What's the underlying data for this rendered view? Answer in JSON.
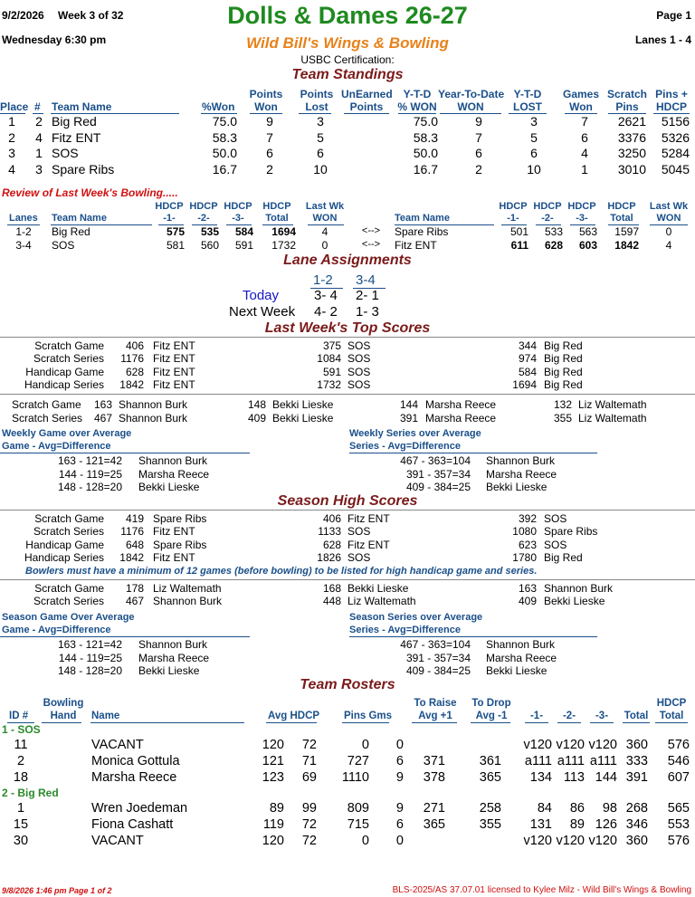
{
  "header": {
    "date": "9/2/2026",
    "week": "Week 3 of 32",
    "league": "Dolls & Dames 26-27",
    "page": "Page 1",
    "day_time": "Wednesday   6:30 pm",
    "center": "Wild Bill's Wings & Bowling",
    "lanes": "Lanes 1 - 4",
    "cert": "USBC Certification:"
  },
  "team_standings": {
    "title": "Team Standings",
    "headers": {
      "place": "Place",
      "num": "#",
      "team": "Team Name",
      "pct_won": "%Won",
      "pts_won_1": "Points",
      "pts_won_2": "Won",
      "pts_lost_1": "Points",
      "pts_lost_2": "Lost",
      "unearned_1": "UnEarned",
      "unearned_2": "Points",
      "ytd_pct_1": "Y-T-D",
      "ytd_pct_2": "% WON",
      "ytd_won_1": "Year-To-Date",
      "ytd_won_2": "WON",
      "ytd_lost_1": "Y-T-D",
      "ytd_lost_2": "LOST",
      "games_1": "Games",
      "games_2": "Won",
      "scratch_1": "Scratch",
      "scratch_2": "Pins",
      "pinshdcp_1": "Pins +",
      "pinshdcp_2": "HDCP"
    },
    "rows": [
      {
        "place": "1",
        "num": "2",
        "team": "Big Red",
        "pct": "75.0",
        "won": "9",
        "lost": "3",
        "ytd_pct": "75.0",
        "ytd_won": "9",
        "ytd_lost": "3",
        "games": "7",
        "scratch": "2621",
        "hdcp": "5156"
      },
      {
        "place": "2",
        "num": "4",
        "team": "Fitz ENT",
        "pct": "58.3",
        "won": "7",
        "lost": "5",
        "ytd_pct": "58.3",
        "ytd_won": "7",
        "ytd_lost": "5",
        "games": "6",
        "scratch": "3376",
        "hdcp": "5326"
      },
      {
        "place": "3",
        "num": "1",
        "team": "SOS",
        "pct": "50.0",
        "won": "6",
        "lost": "6",
        "ytd_pct": "50.0",
        "ytd_won": "6",
        "ytd_lost": "6",
        "games": "4",
        "scratch": "3250",
        "hdcp": "5284"
      },
      {
        "place": "4",
        "num": "3",
        "team": "Spare Ribs",
        "pct": "16.7",
        "won": "2",
        "lost": "10",
        "ytd_pct": "16.7",
        "ytd_won": "2",
        "ytd_lost": "10",
        "games": "1",
        "scratch": "3010",
        "hdcp": "5045"
      }
    ]
  },
  "review": {
    "title": "Review of Last Week's Bowling.....",
    "headers": {
      "lanes": "Lanes",
      "team": "Team Name",
      "h1a": "HDCP",
      "h1b": "-1-",
      "h2a": "HDCP",
      "h2b": "-2-",
      "h3a": "HDCP",
      "h3b": "-3-",
      "hta": "HDCP",
      "htb": "Total",
      "lwa": "Last Wk",
      "lwb": "WON"
    },
    "arrow": "<-->",
    "rows": [
      {
        "lanes": "1-2",
        "team": "Big Red",
        "g1": "575",
        "g2": "535",
        "g3": "584",
        "tot": "1694",
        "won": "4",
        "opp": "Spare Ribs",
        "og1": "501",
        "og2": "533",
        "og3": "563",
        "otot": "1597",
        "owon": "0"
      },
      {
        "lanes": "3-4",
        "team": "SOS",
        "g1": "581",
        "g2": "560",
        "g3": "591",
        "tot": "1732",
        "won": "0",
        "opp": "Fitz ENT",
        "og1": "611",
        "og2": "628",
        "og3": "603",
        "otot": "1842",
        "owon": "4"
      }
    ]
  },
  "lane_assign": {
    "title": "Lane Assignments",
    "pair1": "1-2",
    "pair2": "3-4",
    "today_label": "Today",
    "today_1": "3-  4",
    "today_2": "2-  1",
    "next_label": "Next Week",
    "next_1": "4-  2",
    "next_2": "1-  3"
  },
  "top_scores": {
    "title": "Last Week's Top Scores",
    "team_rows": [
      {
        "label": "Scratch Game",
        "v1": "406",
        "t1": "Fitz ENT",
        "v2": "375",
        "t2": "SOS",
        "v3": "344",
        "t3": "Big Red"
      },
      {
        "label": "Scratch Series",
        "v1": "1176",
        "t1": "Fitz ENT",
        "v2": "1084",
        "t2": "SOS",
        "v3": "974",
        "t3": "Big Red"
      },
      {
        "label": "Handicap Game",
        "v1": "628",
        "t1": "Fitz ENT",
        "v2": "591",
        "t2": "SOS",
        "v3": "584",
        "t3": "Big Red"
      },
      {
        "label": "Handicap Series",
        "v1": "1842",
        "t1": "Fitz ENT",
        "v2": "1732",
        "t2": "SOS",
        "v3": "1694",
        "t3": "Big Red"
      }
    ],
    "ind_rows": [
      {
        "label": "Scratch Game",
        "v1": "163",
        "n1": "Shannon Burk",
        "v2": "148",
        "n2": "Bekki Lieske",
        "v3": "144",
        "n3": "Marsha Reece",
        "v4": "132",
        "n4": "Liz Waltemath"
      },
      {
        "label": "Scratch Series",
        "v1": "467",
        "n1": "Shannon Burk",
        "v2": "409",
        "n2": "Bekki Lieske",
        "v3": "391",
        "n3": "Marsha Reece",
        "v4": "355",
        "n4": "Liz Waltemath"
      }
    ],
    "over_game_title1": "Weekly Game over Average",
    "over_game_title2": "Game - Avg=Difference",
    "over_series_title1": "Weekly Series over Average",
    "over_series_title2": "Series - Avg=Difference",
    "over_game": [
      {
        "calc": "163 - 121=42",
        "name": "Shannon Burk"
      },
      {
        "calc": "144 - 119=25",
        "name": "Marsha Reece"
      },
      {
        "calc": "148 - 128=20",
        "name": "Bekki Lieske"
      }
    ],
    "over_series": [
      {
        "calc": "467 - 363=104",
        "name": "Shannon Burk"
      },
      {
        "calc": "391 - 357=34",
        "name": "Marsha Reece"
      },
      {
        "calc": "409 - 384=25",
        "name": "Bekki Lieske"
      }
    ]
  },
  "season_high": {
    "title": "Season High Scores",
    "team_rows": [
      {
        "label": "Scratch Game",
        "v1": "419",
        "t1": "Spare Ribs",
        "v2": "406",
        "t2": "Fitz ENT",
        "v3": "392",
        "t3": "SOS"
      },
      {
        "label": "Scratch Series",
        "v1": "1176",
        "t1": "Fitz ENT",
        "v2": "1133",
        "t2": "SOS",
        "v3": "1080",
        "t3": "Spare Ribs"
      },
      {
        "label": "Handicap Game",
        "v1": "648",
        "t1": "Spare Ribs",
        "v2": "628",
        "t2": "Fitz ENT",
        "v3": "623",
        "t3": "SOS"
      },
      {
        "label": "Handicap Series",
        "v1": "1842",
        "t1": "Fitz ENT",
        "v2": "1826",
        "t2": "SOS",
        "v3": "1780",
        "t3": "Big Red"
      }
    ],
    "note": "Bowlers must have a minimum of 12 games (before bowling) to be listed for high handicap game and series.",
    "ind_rows": [
      {
        "label": "Scratch Game",
        "v1": "178",
        "n1": "Liz Waltemath",
        "v2": "168",
        "n2": "Bekki Lieske",
        "v3": "163",
        "n3": "Shannon Burk"
      },
      {
        "label": "Scratch Series",
        "v1": "467",
        "n1": "Shannon Burk",
        "v2": "448",
        "n2": "Liz Waltemath",
        "v3": "409",
        "n3": "Bekki Lieske"
      }
    ],
    "over_game_title1": "Season Game Over Average",
    "over_game_title2": "Game - Avg=Difference",
    "over_series_title1": "Season Series over Average",
    "over_series_title2": "Series - Avg=Difference",
    "over_game": [
      {
        "calc": "163 - 121=42",
        "name": "Shannon Burk"
      },
      {
        "calc": "144 - 119=25",
        "name": "Marsha Reece"
      },
      {
        "calc": "148 - 128=20",
        "name": "Bekki Lieske"
      }
    ],
    "over_series": [
      {
        "calc": "467 - 363=104",
        "name": "Shannon Burk"
      },
      {
        "calc": "391 - 357=34",
        "name": "Marsha Reece"
      },
      {
        "calc": "409 - 384=25",
        "name": "Bekki Lieske"
      }
    ]
  },
  "rosters": {
    "title": "Team Rosters",
    "headers": {
      "id": "ID #",
      "bh1": "Bowling",
      "bh2": "Hand",
      "name": "Name",
      "avg": "Avg HDCP",
      "pins": "Pins  Gms",
      "tr1": "To Raise",
      "tr2": "Avg +1",
      "td1": "To Drop",
      "td2": "Avg -1",
      "g1": "-1-",
      "g2": "-2-",
      "g3": "-3-",
      "total": "Total",
      "ht1": "HDCP",
      "ht2": "Total"
    },
    "teams": [
      {
        "label": "1 - SOS",
        "bowlers": [
          {
            "id": "11",
            "name": "VACANT",
            "avg": "120",
            "hdcp": "72",
            "pins": "0",
            "gms": "0",
            "raise": "",
            "drop": "",
            "g1": "v120",
            "g2": "v120",
            "g3": "v120",
            "total": "360",
            "htotal": "576"
          },
          {
            "id": "2",
            "name": "Monica Gottula",
            "avg": "121",
            "hdcp": "71",
            "pins": "727",
            "gms": "6",
            "raise": "371",
            "drop": "361",
            "g1": "a111",
            "g2": "a111",
            "g3": "a111",
            "total": "333",
            "htotal": "546"
          },
          {
            "id": "18",
            "name": "Marsha Reece",
            "avg": "123",
            "hdcp": "69",
            "pins": "1110",
            "gms": "9",
            "raise": "378",
            "drop": "365",
            "g1": "134",
            "g2": "113",
            "g3": "144",
            "total": "391",
            "htotal": "607"
          }
        ]
      },
      {
        "label": "2 - Big Red",
        "bowlers": [
          {
            "id": "1",
            "name": "Wren Joedeman",
            "avg": "89",
            "hdcp": "99",
            "pins": "809",
            "gms": "9",
            "raise": "271",
            "drop": "258",
            "g1": "84",
            "g2": "86",
            "g3": "98",
            "total": "268",
            "htotal": "565"
          },
          {
            "id": "15",
            "name": "Fiona Cashatt",
            "avg": "119",
            "hdcp": "72",
            "pins": "715",
            "gms": "6",
            "raise": "365",
            "drop": "355",
            "g1": "131",
            "g2": "89",
            "g3": "126",
            "total": "346",
            "htotal": "553"
          },
          {
            "id": "30",
            "name": "VACANT",
            "avg": "120",
            "hdcp": "72",
            "pins": "0",
            "gms": "0",
            "raise": "",
            "drop": "",
            "g1": "v120",
            "g2": "v120",
            "g3": "v120",
            "total": "360",
            "htotal": "576"
          }
        ]
      }
    ]
  },
  "footer": {
    "left": "9/8/2026   1:46 pm   Page 1 of 2",
    "right": "BLS-2025/AS 37.07.01 licensed to Kylee Milz - Wild Bill's Wings & Bowling"
  }
}
